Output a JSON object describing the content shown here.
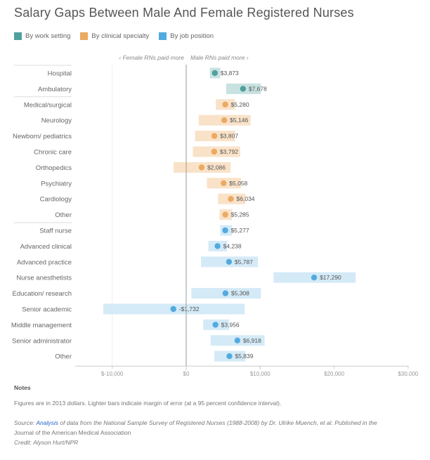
{
  "title": "Salary Gaps Between Male And Female Registered Nurses",
  "legend": [
    {
      "label": "By work setting",
      "color": "#51a09e",
      "light": "#c7e2e1"
    },
    {
      "label": "By clinical specialty",
      "color": "#eaaa61",
      "light": "#f9e2c8"
    },
    {
      "label": "By job position",
      "color": "#52abdf",
      "light": "#d4eaf7"
    }
  ],
  "direction": {
    "left": "‹ Female RNs paid more",
    "right": "Male RNs paid more ›"
  },
  "chart_data": {
    "type": "dot-with-range",
    "title": "Salary Gaps Between Male And Female Registered Nurses",
    "xlabel": "",
    "ylabel": "",
    "xlim": [
      -15000,
      30000
    ],
    "xticks": [
      -10000,
      0,
      10000,
      20000,
      30000
    ],
    "xtick_labels": [
      "$-10,000",
      "$0",
      "$10,000",
      "$20,000",
      "$30,000"
    ],
    "legend_position": "top-left",
    "groups": [
      {
        "name": "By work setting",
        "rows": [
          {
            "label": "Hospital",
            "value": 3873,
            "value_label": "$3,873",
            "low": 3200,
            "high": 4600
          },
          {
            "label": "Ambulatory",
            "value": 7678,
            "value_label": "$7,678",
            "low": 5400,
            "high": 10100
          }
        ]
      },
      {
        "name": "By clinical specialty",
        "rows": [
          {
            "label": "Medical/surgical",
            "value": 5280,
            "value_label": "$5,280",
            "low": 4000,
            "high": 6600
          },
          {
            "label": "Neurology",
            "value": 5146,
            "value_label": "$5,146",
            "low": 1700,
            "high": 8700
          },
          {
            "label": "Newborn/ pediatrics",
            "value": 3807,
            "value_label": "$3,807",
            "low": 1200,
            "high": 6600
          },
          {
            "label": "Chronic care",
            "value": 3792,
            "value_label": "$3,792",
            "low": 900,
            "high": 7300
          },
          {
            "label": "Orthopedics",
            "value": 2086,
            "value_label": "$2,086",
            "low": -1700,
            "high": 6000
          },
          {
            "label": "Psychiatry",
            "value": 5058,
            "value_label": "$5,058",
            "low": 2800,
            "high": 7400
          },
          {
            "label": "Cardiology",
            "value": 6034,
            "value_label": "$6,034",
            "low": 4300,
            "high": 8000
          },
          {
            "label": "Other",
            "value": 5285,
            "value_label": "$5,285",
            "low": 4500,
            "high": 6200
          }
        ]
      },
      {
        "name": "By job position",
        "rows": [
          {
            "label": "Staff nurse",
            "value": 5277,
            "value_label": "$5,277",
            "low": 4600,
            "high": 6200
          },
          {
            "label": "Advanced clinical",
            "value": 4238,
            "value_label": "$4,238",
            "low": 3000,
            "high": 5500
          },
          {
            "label": "Advanced practice",
            "value": 5787,
            "value_label": "$5,787",
            "low": 2000,
            "high": 9700
          },
          {
            "label": "Nurse anesthetists",
            "value": 17290,
            "value_label": "$17,290",
            "low": 11800,
            "high": 22900
          },
          {
            "label": "Education/ research",
            "value": 5308,
            "value_label": "$5,308",
            "low": 700,
            "high": 10100
          },
          {
            "label": "Senior academic",
            "value": -1732,
            "value_label": "-$1,732",
            "low": -11200,
            "high": 7900
          },
          {
            "label": "Middle management",
            "value": 3956,
            "value_label": "$3,956",
            "low": 2300,
            "high": 5800
          },
          {
            "label": "Senior administrator",
            "value": 6918,
            "value_label": "$6,918",
            "low": 3300,
            "high": 10600
          },
          {
            "label": "Other",
            "value": 5839,
            "value_label": "$5,839",
            "low": 3800,
            "high": 8000
          }
        ]
      }
    ]
  },
  "notes": {
    "heading": "Notes",
    "text": "Figures are in 2013 dollars. Lighter bars indicate margin of error (at a 95 percent confidence interval).",
    "source_prefix": "Source: ",
    "source_link": "Analysis",
    "source_rest": " of data from the National Sample Survey of Registered Nurses (1988-2008) by Dr. Ulrike Muench, et al. Published in the",
    "source_tail": "Journal of the American Medical Association",
    "credit": "Credit: Alyson Hurt/NPR"
  }
}
